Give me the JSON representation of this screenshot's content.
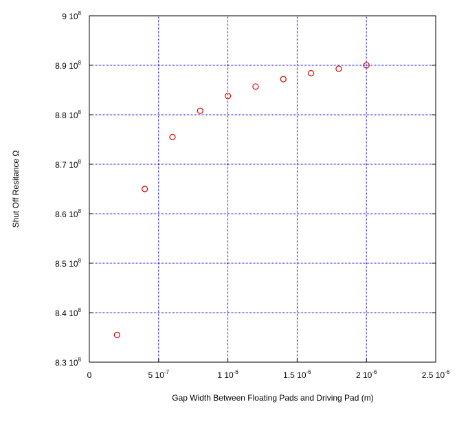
{
  "chart_data": {
    "type": "scatter",
    "xlabel": "Gap Width Between Floating Pads and Driving Pad (m)",
    "ylabel": "Shut Off Resitance Ω",
    "xlim": [
      0,
      2.5e-06
    ],
    "ylim": [
      830000000.0,
      900000000.0
    ],
    "grid": true,
    "x_ticks": [
      {
        "value": 0,
        "mant": "0",
        "exp": ""
      },
      {
        "value": 5e-07,
        "mant": "5 10",
        "exp": "-7"
      },
      {
        "value": 1e-06,
        "mant": "1 10",
        "exp": "-6"
      },
      {
        "value": 1.5e-06,
        "mant": "1.5 10",
        "exp": "-6"
      },
      {
        "value": 2e-06,
        "mant": "2 10",
        "exp": "-6"
      },
      {
        "value": 2.5e-06,
        "mant": "2.5 10",
        "exp": "-6"
      }
    ],
    "y_ticks": [
      {
        "value": 830000000.0,
        "mant": "8.3 10",
        "exp": "8"
      },
      {
        "value": 840000000.0,
        "mant": "8.4 10",
        "exp": "8"
      },
      {
        "value": 850000000.0,
        "mant": "8.5 10",
        "exp": "8"
      },
      {
        "value": 860000000.0,
        "mant": "8.6 10",
        "exp": "8"
      },
      {
        "value": 870000000.0,
        "mant": "8.7 10",
        "exp": "8"
      },
      {
        "value": 880000000.0,
        "mant": "8.8 10",
        "exp": "8"
      },
      {
        "value": 890000000.0,
        "mant": "8.9 10",
        "exp": "8"
      },
      {
        "value": 900000000.0,
        "mant": "9 10",
        "exp": "8"
      }
    ],
    "series": [
      {
        "marker": "circle-open",
        "color": "#dd0000",
        "x": [
          2e-07,
          4e-07,
          6e-07,
          8e-07,
          1e-06,
          1.2e-06,
          1.4e-06,
          1.6e-06,
          1.8e-06,
          2e-06
        ],
        "y": [
          835500000.0,
          865000000.0,
          875500000.0,
          880800000.0,
          883800000.0,
          885700000.0,
          887200000.0,
          888400000.0,
          889300000.0,
          890000000.0
        ]
      }
    ],
    "colors": {
      "grid": "#0000cc",
      "axes": "#000000"
    }
  }
}
